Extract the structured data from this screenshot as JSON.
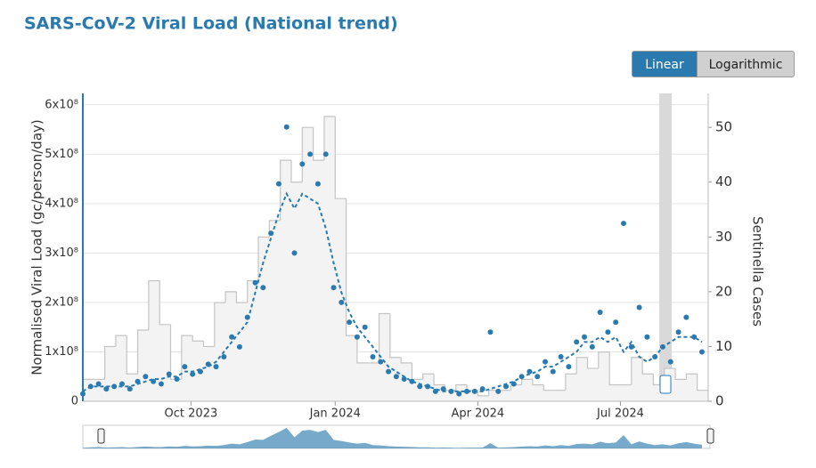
{
  "chart_data": {
    "type": "scatter",
    "title": "SARS-CoV-2 Viral Load (National trend)",
    "ylabel": "Normalised Viral Load (gc/person/day)",
    "y2label": "Sentinella Cases",
    "scale_options": [
      "Linear",
      "Logarithmic"
    ],
    "log_scale": false,
    "grid": true,
    "xlim": [
      0,
      399
    ],
    "xticks": [
      {
        "value": 69,
        "label": "Oct 2023"
      },
      {
        "value": 161,
        "label": "Jan 2024"
      },
      {
        "value": 252,
        "label": "Apr 2024"
      },
      {
        "value": 343,
        "label": "Jul 2024"
      }
    ],
    "ylim": [
      0,
      623000000.0
    ],
    "yticks": [
      0,
      {
        "value": 100000000.0,
        "label": "1x10⁸"
      },
      {
        "value": 200000000.0,
        "label": "2x10⁸"
      },
      {
        "value": 300000000.0,
        "label": "3x10⁸"
      },
      {
        "value": 400000000.0,
        "label": "4x10⁸"
      },
      {
        "value": 500000000.0,
        "label": "5x10⁸"
      },
      {
        "value": 600000000.0,
        "label": "6x10⁸"
      }
    ],
    "y2lim": [
      0,
      56.2
    ],
    "y2ticks": [
      0,
      10,
      20,
      30,
      40,
      50
    ],
    "series": [
      {
        "kind": "step",
        "axis": "y2",
        "color": "#c4c4c4",
        "x": [
          0,
          7,
          14,
          21,
          28,
          35,
          42,
          49,
          56,
          63,
          70,
          77,
          84,
          91,
          98,
          105,
          112,
          119,
          126,
          133,
          140,
          147,
          154,
          161,
          168,
          175,
          182,
          189,
          196,
          203,
          210,
          217,
          224,
          231,
          238,
          245,
          252,
          259,
          266,
          273,
          280,
          287,
          294,
          301,
          308,
          315,
          322,
          329,
          336,
          343,
          350,
          357,
          364,
          371,
          378,
          385,
          392
        ],
        "values": [
          4,
          4,
          10,
          12,
          5,
          13,
          22,
          14,
          4,
          12,
          11,
          10,
          18,
          20,
          18,
          22,
          30,
          33,
          44,
          40,
          50,
          44,
          52,
          37,
          12,
          7,
          7,
          16,
          8,
          7,
          4,
          5,
          3,
          2,
          3,
          2,
          1,
          2,
          2,
          3,
          4,
          3,
          2,
          2,
          5,
          8,
          6,
          9,
          3,
          3,
          8,
          5,
          3,
          6,
          4,
          5,
          2
        ]
      },
      {
        "kind": "dots",
        "color": "#2a7ab0",
        "x": [
          0,
          5,
          10,
          15,
          20,
          25,
          30,
          35,
          40,
          45,
          50,
          55,
          60,
          65,
          70,
          75,
          80,
          85,
          90,
          95,
          100,
          105,
          110,
          115,
          120,
          125,
          130,
          135,
          140,
          145,
          150,
          155,
          160,
          165,
          170,
          175,
          180,
          185,
          190,
          195,
          200,
          205,
          210,
          215,
          220,
          225,
          230,
          235,
          240,
          245,
          250,
          255,
          260,
          265,
          270,
          275,
          280,
          285,
          290,
          295,
          300,
          305,
          310,
          315,
          320,
          325,
          330,
          335,
          340,
          345,
          350,
          355,
          360,
          365,
          370,
          375,
          380,
          385,
          390,
          395
        ],
        "values": [
          15000000.0,
          30000000.0,
          35000000.0,
          25000000.0,
          30000000.0,
          35000000.0,
          25000000.0,
          40000000.0,
          50000000.0,
          40000000.0,
          35000000.0,
          55000000.0,
          45000000.0,
          70000000.0,
          55000000.0,
          60000000.0,
          75000000.0,
          70000000.0,
          90000000.0,
          130000000.0,
          110000000.0,
          170000000.0,
          240000000.0,
          230000000.0,
          340000000.0,
          440000000.0,
          555000000.0,
          300000000.0,
          480000000.0,
          500000000.0,
          440000000.0,
          500000000.0,
          230000000.0,
          200000000.0,
          160000000.0,
          130000000.0,
          150000000.0,
          90000000.0,
          80000000.0,
          60000000.0,
          50000000.0,
          45000000.0,
          40000000.0,
          30000000.0,
          30000000.0,
          20000000.0,
          25000000.0,
          20000000.0,
          15000000.0,
          20000000.0,
          20000000.0,
          25000000.0,
          140000000.0,
          20000000.0,
          30000000.0,
          35000000.0,
          50000000.0,
          60000000.0,
          50000000.0,
          80000000.0,
          60000000.0,
          90000000.0,
          70000000.0,
          120000000.0,
          130000000.0,
          110000000.0,
          180000000.0,
          140000000.0,
          160000000.0,
          360000000.0,
          110000000.0,
          190000000.0,
          130000000.0,
          90000000.0,
          110000000.0,
          80000000.0,
          140000000.0,
          170000000.0,
          130000000.0,
          100000000.0
        ]
      },
      {
        "kind": "dashed",
        "color": "#2a7ab0",
        "x": [
          0,
          5,
          10,
          15,
          20,
          25,
          30,
          35,
          40,
          45,
          50,
          55,
          60,
          65,
          70,
          75,
          80,
          85,
          90,
          95,
          100,
          105,
          110,
          115,
          120,
          125,
          130,
          135,
          140,
          145,
          150,
          155,
          160,
          165,
          170,
          175,
          180,
          185,
          190,
          195,
          200,
          205,
          210,
          215,
          220,
          225,
          230,
          235,
          240,
          245,
          250,
          255,
          260,
          265,
          270,
          275,
          280,
          285,
          290,
          295,
          300,
          305,
          310,
          315,
          320,
          325,
          330,
          335,
          340,
          345,
          350,
          355,
          360,
          365,
          370,
          375,
          380,
          385,
          390,
          395
        ],
        "values": [
          20000000.0,
          30000000.0,
          30000000.0,
          30000000.0,
          30000000.0,
          30000000.0,
          30000000.0,
          35000000.0,
          40000000.0,
          45000000.0,
          45000000.0,
          50000000.0,
          50000000.0,
          60000000.0,
          60000000.0,
          65000000.0,
          70000000.0,
          80000000.0,
          100000000.0,
          120000000.0,
          140000000.0,
          160000000.0,
          220000000.0,
          280000000.0,
          330000000.0,
          380000000.0,
          420000000.0,
          390000000.0,
          420000000.0,
          410000000.0,
          400000000.0,
          350000000.0,
          280000000.0,
          220000000.0,
          180000000.0,
          150000000.0,
          130000000.0,
          110000000.0,
          90000000.0,
          70000000.0,
          60000000.0,
          50000000.0,
          40000000.0,
          35000000.0,
          30000000.0,
          25000000.0,
          20000000.0,
          20000000.0,
          20000000.0,
          20000000.0,
          20000000.0,
          20000000.0,
          25000000.0,
          30000000.0,
          35000000.0,
          40000000.0,
          50000000.0,
          55000000.0,
          60000000.0,
          70000000.0,
          70000000.0,
          80000000.0,
          90000000.0,
          100000000.0,
          120000000.0,
          120000000.0,
          130000000.0,
          120000000.0,
          130000000.0,
          100000000.0,
          120000000.0,
          90000000.0,
          80000000.0,
          90000000.0,
          110000000.0,
          120000000.0,
          130000000.0,
          130000000.0,
          130000000.0,
          120000000.0
        ]
      }
    ]
  }
}
